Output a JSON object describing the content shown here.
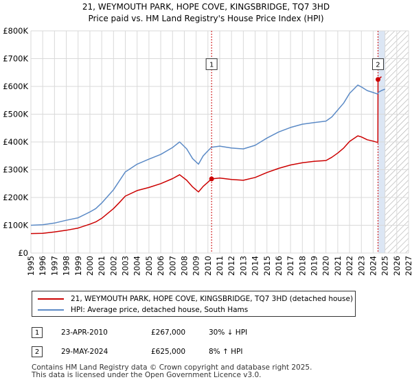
{
  "chart_data": {
    "type": "line",
    "title": "21, WEYMOUTH PARK, HOPE COVE, KINGSBRIDGE, TQ7 3HD",
    "subtitle": "Price paid vs. HM Land Registry's House Price Index (HPI)",
    "xlabel": "",
    "ylabel": "",
    "xlim": [
      1995,
      2027
    ],
    "ylim": [
      0,
      800000
    ],
    "x_ticks": [
      "1995",
      "1996",
      "1997",
      "1998",
      "1999",
      "2000",
      "2001",
      "2002",
      "2003",
      "2004",
      "2005",
      "2006",
      "2007",
      "2008",
      "2009",
      "2010",
      "2011",
      "2012",
      "2013",
      "2014",
      "2015",
      "2016",
      "2017",
      "2018",
      "2019",
      "2020",
      "2021",
      "2022",
      "2023",
      "2024",
      "2025",
      "2026",
      "2027"
    ],
    "y_ticks": [
      0,
      100000,
      200000,
      300000,
      400000,
      500000,
      600000,
      700000,
      800000
    ],
    "y_tick_labels": [
      "£0",
      "£100K",
      "£200K",
      "£300K",
      "£400K",
      "£500K",
      "£600K",
      "£700K",
      "£800K"
    ],
    "grid": true,
    "shaded_region": {
      "from": 2024.41,
      "to": 2025.0,
      "color": "#dce6f4"
    },
    "hatched_region": {
      "from": 2025.0,
      "to": 2027.0
    },
    "series": [
      {
        "name": "21, WEYMOUTH PARK, HOPE COVE, KINGSBRIDGE, TQ7 3HD (detached house)",
        "color": "#cc0000",
        "x": [
          1995.0,
          1996.0,
          1997.0,
          1998.0,
          1999.0,
          2000.0,
          2000.5,
          2001.0,
          2002.0,
          2002.5,
          2003.0,
          2004.0,
          2005.0,
          2006.0,
          2007.0,
          2007.6,
          2008.2,
          2008.7,
          2009.2,
          2009.6,
          2010.0,
          2010.31,
          2011.0,
          2012.0,
          2013.0,
          2014.0,
          2015.0,
          2016.0,
          2017.0,
          2018.0,
          2019.0,
          2020.0,
          2020.5,
          2021.0,
          2021.5,
          2022.0,
          2022.7,
          2023.0,
          2023.5,
          2024.0,
          2024.4,
          2024.41,
          2024.7
        ],
        "values": [
          70000,
          71000,
          76000,
          82000,
          90000,
          104000,
          112000,
          125000,
          160000,
          182000,
          205000,
          225000,
          236000,
          250000,
          268000,
          282000,
          262000,
          238000,
          220000,
          240000,
          255000,
          267000,
          270000,
          265000,
          262000,
          272000,
          290000,
          305000,
          317000,
          325000,
          330000,
          333000,
          345000,
          360000,
          378000,
          402000,
          422000,
          418000,
          408000,
          403000,
          398000,
          625000,
          635000
        ]
      },
      {
        "name": "HPI: Average price, detached house, South Hams",
        "color": "#5b8ac6",
        "x": [
          1995.0,
          1996.0,
          1997.0,
          1998.0,
          1999.0,
          2000.0,
          2000.5,
          2001.0,
          2002.0,
          2002.5,
          2003.0,
          2004.0,
          2005.0,
          2006.0,
          2007.0,
          2007.6,
          2008.2,
          2008.7,
          2009.2,
          2009.6,
          2010.0,
          2010.31,
          2011.0,
          2012.0,
          2013.0,
          2014.0,
          2015.0,
          2016.0,
          2017.0,
          2018.0,
          2019.0,
          2020.0,
          2020.5,
          2021.0,
          2021.5,
          2022.0,
          2022.7,
          2023.0,
          2023.5,
          2024.0,
          2024.4,
          2024.41,
          2024.7,
          2025.0
        ],
        "values": [
          100000,
          102000,
          108000,
          118000,
          127000,
          148000,
          160000,
          180000,
          228000,
          260000,
          292000,
          320000,
          338000,
          355000,
          380000,
          400000,
          375000,
          340000,
          320000,
          350000,
          368000,
          381000,
          385000,
          378000,
          375000,
          388000,
          414000,
          436000,
          452000,
          464000,
          470000,
          475000,
          490000,
          515000,
          540000,
          575000,
          605000,
          598000,
          585000,
          578000,
          572000,
          578000,
          585000,
          590000
        ]
      }
    ],
    "annotations": [
      {
        "label": "1",
        "x": 2010.31,
        "label_value": 680000
      },
      {
        "label": "2",
        "x": 2024.41,
        "label_value": 680000
      }
    ],
    "sale_points": [
      {
        "x": 2010.31,
        "value": 267000
      },
      {
        "x": 2024.41,
        "value": 625000
      }
    ]
  },
  "legend": {
    "property_label": "21, WEYMOUTH PARK, HOPE COVE, KINGSBRIDGE, TQ7 3HD (detached house)",
    "hpi_label": "HPI: Average price, detached house, South Hams"
  },
  "sales": [
    {
      "num": "1",
      "date": "23-APR-2010",
      "price": "£267,000",
      "hpi": "30% ↓ HPI"
    },
    {
      "num": "2",
      "date": "29-MAY-2024",
      "price": "£625,000",
      "hpi": "8% ↑ HPI"
    }
  ],
  "footer": {
    "line1": "Contains HM Land Registry data © Crown copyright and database right 2025.",
    "line2": "This data is licensed under the Open Government Licence v3.0."
  }
}
